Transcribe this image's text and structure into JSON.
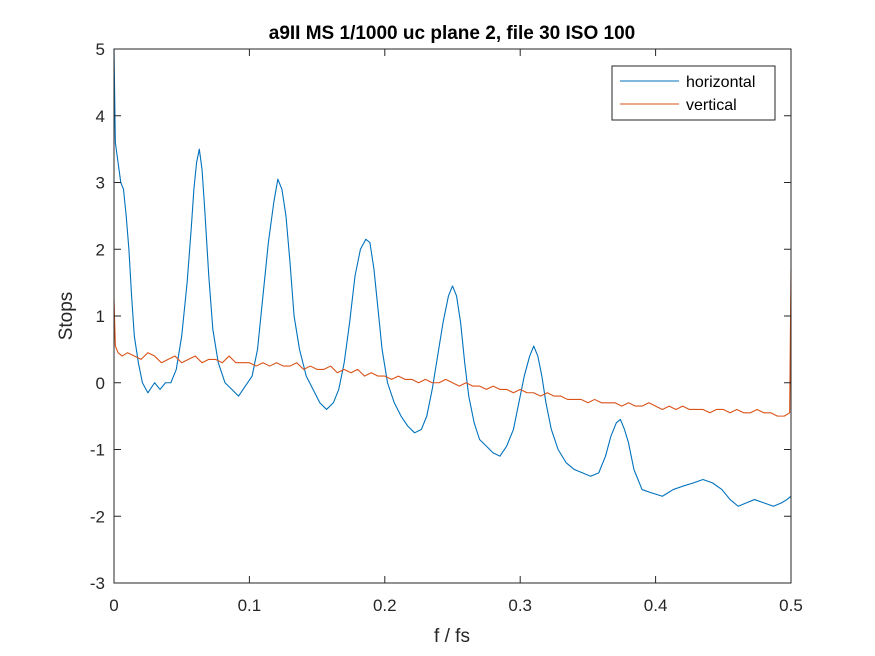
{
  "chart_data": {
    "type": "line",
    "title": "a9II MS 1/1000 uc plane 2, file 30 ISO 100",
    "xlabel": "f / fs",
    "ylabel": "Stops",
    "xlim": [
      0,
      0.5
    ],
    "ylim": [
      -3,
      5
    ],
    "xticks": [
      0,
      0.1,
      0.2,
      0.3,
      0.4,
      0.5
    ],
    "xtick_labels": [
      "0",
      "0.1",
      "0.2",
      "0.3",
      "0.4",
      "0.5"
    ],
    "yticks": [
      -3,
      -2,
      -1,
      0,
      1,
      2,
      3,
      4,
      5
    ],
    "ytick_labels": [
      "-3",
      "-2",
      "-1",
      "0",
      "1",
      "2",
      "3",
      "4",
      "5"
    ],
    "grid": false,
    "legend_position": "top-right",
    "series": [
      {
        "name": "horizontal",
        "color": "#0072BD",
        "points": [
          [
            0.0,
            5.0
          ],
          [
            0.001,
            3.6
          ],
          [
            0.003,
            3.3
          ],
          [
            0.005,
            3.0
          ],
          [
            0.007,
            2.9
          ],
          [
            0.009,
            2.5
          ],
          [
            0.011,
            2.0
          ],
          [
            0.013,
            1.3
          ],
          [
            0.015,
            0.7
          ],
          [
            0.018,
            0.3
          ],
          [
            0.021,
            0.0
          ],
          [
            0.025,
            -0.15
          ],
          [
            0.03,
            0.0
          ],
          [
            0.034,
            -0.1
          ],
          [
            0.038,
            0.0
          ],
          [
            0.042,
            0.0
          ],
          [
            0.046,
            0.2
          ],
          [
            0.05,
            0.7
          ],
          [
            0.054,
            1.5
          ],
          [
            0.057,
            2.3
          ],
          [
            0.059,
            2.9
          ],
          [
            0.061,
            3.3
          ],
          [
            0.063,
            3.5
          ],
          [
            0.065,
            3.2
          ],
          [
            0.067,
            2.6
          ],
          [
            0.07,
            1.6
          ],
          [
            0.073,
            0.8
          ],
          [
            0.077,
            0.3
          ],
          [
            0.082,
            0.0
          ],
          [
            0.087,
            -0.1
          ],
          [
            0.092,
            -0.2
          ],
          [
            0.097,
            -0.05
          ],
          [
            0.102,
            0.1
          ],
          [
            0.106,
            0.5
          ],
          [
            0.11,
            1.3
          ],
          [
            0.114,
            2.1
          ],
          [
            0.118,
            2.7
          ],
          [
            0.121,
            3.05
          ],
          [
            0.124,
            2.9
          ],
          [
            0.127,
            2.5
          ],
          [
            0.13,
            1.8
          ],
          [
            0.133,
            1.0
          ],
          [
            0.137,
            0.5
          ],
          [
            0.142,
            0.1
          ],
          [
            0.147,
            -0.1
          ],
          [
            0.152,
            -0.3
          ],
          [
            0.157,
            -0.4
          ],
          [
            0.162,
            -0.3
          ],
          [
            0.166,
            -0.1
          ],
          [
            0.17,
            0.3
          ],
          [
            0.174,
            0.9
          ],
          [
            0.178,
            1.6
          ],
          [
            0.182,
            2.0
          ],
          [
            0.186,
            2.15
          ],
          [
            0.189,
            2.1
          ],
          [
            0.192,
            1.7
          ],
          [
            0.195,
            1.1
          ],
          [
            0.198,
            0.5
          ],
          [
            0.202,
            0.0
          ],
          [
            0.207,
            -0.3
          ],
          [
            0.212,
            -0.5
          ],
          [
            0.217,
            -0.65
          ],
          [
            0.222,
            -0.75
          ],
          [
            0.227,
            -0.7
          ],
          [
            0.231,
            -0.5
          ],
          [
            0.235,
            -0.1
          ],
          [
            0.239,
            0.4
          ],
          [
            0.243,
            0.9
          ],
          [
            0.247,
            1.3
          ],
          [
            0.25,
            1.45
          ],
          [
            0.253,
            1.3
          ],
          [
            0.256,
            0.9
          ],
          [
            0.259,
            0.3
          ],
          [
            0.262,
            -0.2
          ],
          [
            0.266,
            -0.6
          ],
          [
            0.27,
            -0.85
          ],
          [
            0.275,
            -0.95
          ],
          [
            0.28,
            -1.05
          ],
          [
            0.285,
            -1.1
          ],
          [
            0.29,
            -0.95
          ],
          [
            0.295,
            -0.7
          ],
          [
            0.299,
            -0.3
          ],
          [
            0.303,
            0.1
          ],
          [
            0.307,
            0.4
          ],
          [
            0.31,
            0.55
          ],
          [
            0.313,
            0.4
          ],
          [
            0.316,
            0.1
          ],
          [
            0.319,
            -0.3
          ],
          [
            0.323,
            -0.7
          ],
          [
            0.328,
            -1.0
          ],
          [
            0.334,
            -1.2
          ],
          [
            0.34,
            -1.3
          ],
          [
            0.346,
            -1.35
          ],
          [
            0.352,
            -1.4
          ],
          [
            0.358,
            -1.35
          ],
          [
            0.363,
            -1.1
          ],
          [
            0.367,
            -0.8
          ],
          [
            0.371,
            -0.6
          ],
          [
            0.374,
            -0.55
          ],
          [
            0.377,
            -0.7
          ],
          [
            0.38,
            -0.9
          ],
          [
            0.384,
            -1.3
          ],
          [
            0.39,
            -1.6
          ],
          [
            0.397,
            -1.65
          ],
          [
            0.405,
            -1.7
          ],
          [
            0.413,
            -1.6
          ],
          [
            0.42,
            -1.55
          ],
          [
            0.428,
            -1.5
          ],
          [
            0.435,
            -1.45
          ],
          [
            0.442,
            -1.5
          ],
          [
            0.449,
            -1.6
          ],
          [
            0.455,
            -1.75
          ],
          [
            0.461,
            -1.85
          ],
          [
            0.467,
            -1.8
          ],
          [
            0.473,
            -1.75
          ],
          [
            0.48,
            -1.8
          ],
          [
            0.487,
            -1.85
          ],
          [
            0.493,
            -1.8
          ],
          [
            0.497,
            -1.75
          ],
          [
            0.5,
            -1.7
          ]
        ]
      },
      {
        "name": "vertical",
        "color": "#D95319",
        "points": [
          [
            0.0,
            1.25
          ],
          [
            0.001,
            0.55
          ],
          [
            0.003,
            0.45
          ],
          [
            0.006,
            0.4
          ],
          [
            0.01,
            0.45
          ],
          [
            0.015,
            0.4
          ],
          [
            0.02,
            0.35
          ],
          [
            0.025,
            0.45
          ],
          [
            0.03,
            0.4
          ],
          [
            0.035,
            0.3
          ],
          [
            0.04,
            0.35
          ],
          [
            0.045,
            0.4
          ],
          [
            0.05,
            0.3
          ],
          [
            0.055,
            0.35
          ],
          [
            0.06,
            0.4
          ],
          [
            0.065,
            0.3
          ],
          [
            0.07,
            0.35
          ],
          [
            0.075,
            0.35
          ],
          [
            0.08,
            0.3
          ],
          [
            0.085,
            0.4
          ],
          [
            0.09,
            0.3
          ],
          [
            0.095,
            0.3
          ],
          [
            0.1,
            0.3
          ],
          [
            0.105,
            0.25
          ],
          [
            0.11,
            0.3
          ],
          [
            0.115,
            0.25
          ],
          [
            0.12,
            0.3
          ],
          [
            0.125,
            0.25
          ],
          [
            0.13,
            0.25
          ],
          [
            0.135,
            0.3
          ],
          [
            0.14,
            0.2
          ],
          [
            0.145,
            0.25
          ],
          [
            0.15,
            0.2
          ],
          [
            0.155,
            0.2
          ],
          [
            0.16,
            0.25
          ],
          [
            0.165,
            0.15
          ],
          [
            0.17,
            0.2
          ],
          [
            0.175,
            0.15
          ],
          [
            0.18,
            0.2
          ],
          [
            0.185,
            0.1
          ],
          [
            0.19,
            0.15
          ],
          [
            0.195,
            0.1
          ],
          [
            0.2,
            0.1
          ],
          [
            0.205,
            0.05
          ],
          [
            0.21,
            0.1
          ],
          [
            0.215,
            0.05
          ],
          [
            0.22,
            0.05
          ],
          [
            0.225,
            0.0
          ],
          [
            0.23,
            0.05
          ],
          [
            0.235,
            0.0
          ],
          [
            0.24,
            0.0
          ],
          [
            0.245,
            0.05
          ],
          [
            0.25,
            0.0
          ],
          [
            0.255,
            -0.05
          ],
          [
            0.26,
            0.0
          ],
          [
            0.265,
            -0.05
          ],
          [
            0.27,
            -0.05
          ],
          [
            0.275,
            -0.1
          ],
          [
            0.28,
            -0.05
          ],
          [
            0.285,
            -0.1
          ],
          [
            0.29,
            -0.1
          ],
          [
            0.295,
            -0.15
          ],
          [
            0.3,
            -0.1
          ],
          [
            0.305,
            -0.15
          ],
          [
            0.31,
            -0.15
          ],
          [
            0.315,
            -0.2
          ],
          [
            0.32,
            -0.15
          ],
          [
            0.325,
            -0.2
          ],
          [
            0.33,
            -0.2
          ],
          [
            0.335,
            -0.25
          ],
          [
            0.34,
            -0.25
          ],
          [
            0.345,
            -0.25
          ],
          [
            0.35,
            -0.3
          ],
          [
            0.355,
            -0.25
          ],
          [
            0.36,
            -0.3
          ],
          [
            0.365,
            -0.3
          ],
          [
            0.37,
            -0.3
          ],
          [
            0.375,
            -0.35
          ],
          [
            0.38,
            -0.3
          ],
          [
            0.385,
            -0.35
          ],
          [
            0.39,
            -0.35
          ],
          [
            0.395,
            -0.3
          ],
          [
            0.4,
            -0.35
          ],
          [
            0.405,
            -0.4
          ],
          [
            0.41,
            -0.35
          ],
          [
            0.415,
            -0.4
          ],
          [
            0.42,
            -0.35
          ],
          [
            0.425,
            -0.4
          ],
          [
            0.43,
            -0.4
          ],
          [
            0.435,
            -0.4
          ],
          [
            0.44,
            -0.45
          ],
          [
            0.445,
            -0.4
          ],
          [
            0.45,
            -0.4
          ],
          [
            0.455,
            -0.45
          ],
          [
            0.46,
            -0.4
          ],
          [
            0.465,
            -0.45
          ],
          [
            0.47,
            -0.45
          ],
          [
            0.475,
            -0.4
          ],
          [
            0.48,
            -0.45
          ],
          [
            0.485,
            -0.45
          ],
          [
            0.49,
            -0.5
          ],
          [
            0.495,
            -0.5
          ],
          [
            0.499,
            -0.45
          ],
          [
            0.5,
            1.7
          ]
        ]
      }
    ]
  }
}
